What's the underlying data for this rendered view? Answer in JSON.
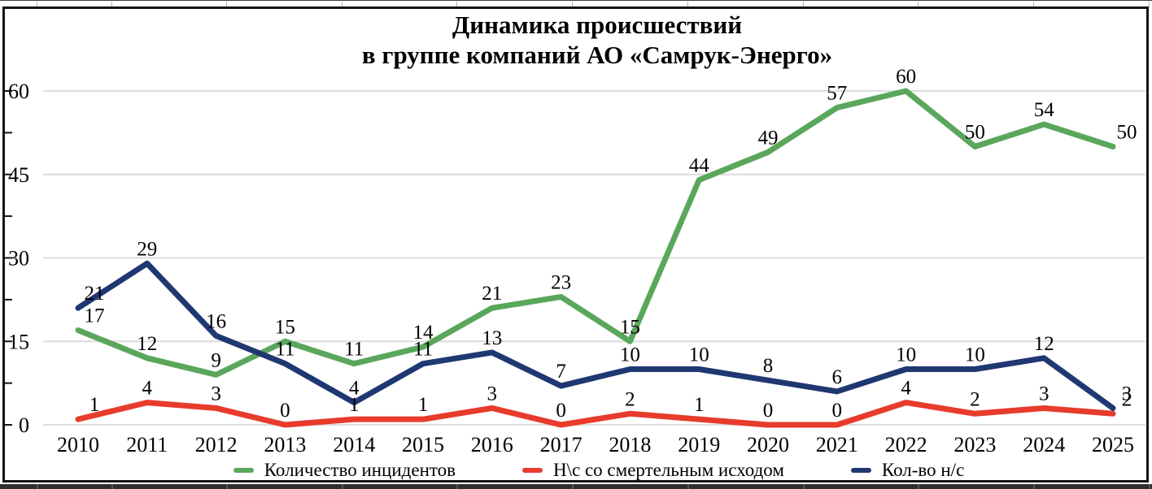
{
  "title": {
    "line1": "Динамика происшествий",
    "line2": "в группе компаний АО «Самрук-Энерго»"
  },
  "chart_data": {
    "type": "line",
    "title": "Динамика происшествий в группе компаний АО «Самрук-Энерго»",
    "categories": [
      "2010",
      "2011",
      "2012",
      "2013",
      "2014",
      "2015",
      "2016",
      "2017",
      "2018",
      "2019",
      "2020",
      "2021",
      "2022",
      "2023",
      "2024",
      "2025"
    ],
    "series": [
      {
        "name": "Количество инцидентов",
        "color": "#5aa75c",
        "values": [
          17,
          12,
          9,
          15,
          11,
          14,
          21,
          23,
          15,
          44,
          49,
          57,
          60,
          50,
          54,
          50
        ]
      },
      {
        "name": "Н\\с со смертельным исходом",
        "color": "#e73b2c",
        "values": [
          1,
          4,
          3,
          0,
          1,
          1,
          3,
          0,
          2,
          1,
          0,
          0,
          4,
          2,
          3,
          2
        ]
      },
      {
        "name": "Кол-во н/с",
        "color": "#1f3872",
        "values": [
          21,
          29,
          16,
          11,
          4,
          11,
          13,
          7,
          10,
          10,
          8,
          6,
          10,
          10,
          12,
          3
        ]
      }
    ],
    "xlabel": "",
    "ylabel": "",
    "ylim": [
      0,
      60
    ],
    "yticks": [
      0,
      15,
      30,
      45,
      60
    ],
    "grid": true,
    "grid_color": "#dcdcdc",
    "data_labels": true,
    "legend_position": "bottom"
  }
}
